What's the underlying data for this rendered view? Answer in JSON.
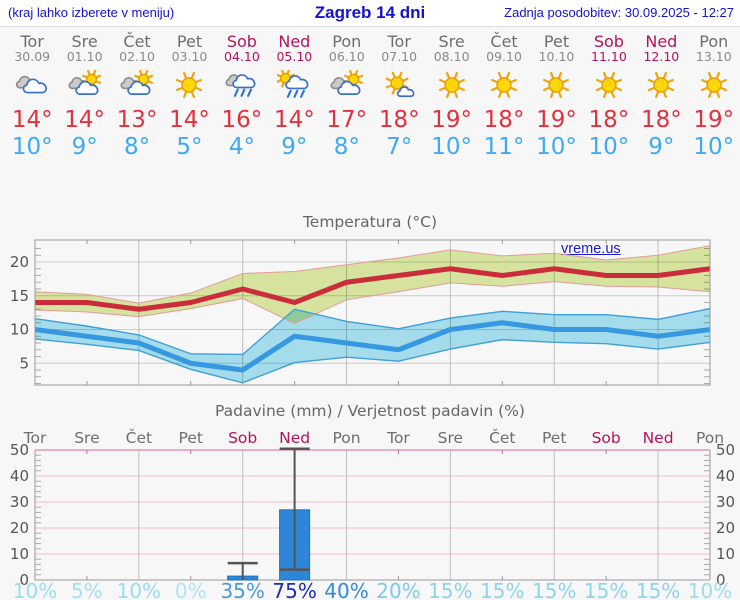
{
  "header": {
    "left_note": "(kraj lahko izberete v meniju)",
    "title": "Zagreb 14 dni",
    "last_update": "Zadnja posodobitev: 30.09.2025 - 12:27"
  },
  "watermark": "vreme.us",
  "colors": {
    "header_blue": "#1212d0",
    "weekend": "#b5135b",
    "weekday": "#6e6e6e",
    "date_weekday": "#8a8a8a",
    "temp_high": "#e0313f",
    "temp_low": "#3fa9f5",
    "axis_text": "#555555",
    "grid_v": "#bfbfbf",
    "grid_h": "#cccccc",
    "precip_grid": "#f3b9c8",
    "precip_top_border": "#e087a0",
    "plot_border": "#999999",
    "whisker": "#555555"
  },
  "days": [
    {
      "name": "Tor",
      "date": "30.09",
      "weekend": false,
      "icon": "cloudy",
      "high": "14°",
      "low": "10°"
    },
    {
      "name": "Sre",
      "date": "01.10",
      "weekend": false,
      "icon": "partly-cloudy",
      "high": "14°",
      "low": "9°"
    },
    {
      "name": "Čet",
      "date": "02.10",
      "weekend": false,
      "icon": "partly-cloudy",
      "high": "13°",
      "low": "8°"
    },
    {
      "name": "Pet",
      "date": "03.10",
      "weekend": false,
      "icon": "sunny",
      "high": "14°",
      "low": "5°"
    },
    {
      "name": "Sob",
      "date": "04.10",
      "weekend": true,
      "icon": "rain",
      "high": "16°",
      "low": "4°"
    },
    {
      "name": "Ned",
      "date": "05.10",
      "weekend": true,
      "icon": "sun-rain",
      "high": "14°",
      "low": "9°"
    },
    {
      "name": "Pon",
      "date": "06.10",
      "weekend": false,
      "icon": "partly-cloudy",
      "high": "17°",
      "low": "8°"
    },
    {
      "name": "Tor",
      "date": "07.10",
      "weekend": false,
      "icon": "mostly-sunny",
      "high": "18°",
      "low": "7°"
    },
    {
      "name": "Sre",
      "date": "08.10",
      "weekend": false,
      "icon": "sunny",
      "high": "19°",
      "low": "10°"
    },
    {
      "name": "Čet",
      "date": "09.10",
      "weekend": false,
      "icon": "sunny",
      "high": "18°",
      "low": "11°"
    },
    {
      "name": "Pet",
      "date": "10.10",
      "weekend": false,
      "icon": "sunny",
      "high": "19°",
      "low": "10°"
    },
    {
      "name": "Sob",
      "date": "11.10",
      "weekend": true,
      "icon": "sunny",
      "high": "18°",
      "low": "10°"
    },
    {
      "name": "Ned",
      "date": "12.10",
      "weekend": true,
      "icon": "sunny",
      "high": "18°",
      "low": "9°"
    },
    {
      "name": "Pon",
      "date": "13.10",
      "weekend": false,
      "icon": "sunny",
      "high": "19°",
      "low": "10°"
    }
  ],
  "chart_data": [
    {
      "type": "line",
      "title": "Temperatura (°C)",
      "x_labels": [
        "Tor",
        "Sre",
        "Čet",
        "Pet",
        "Sob",
        "Ned",
        "Pon",
        "Tor",
        "Sre",
        "Čet",
        "Pet",
        "Sob",
        "Ned",
        "Pon"
      ],
      "ylim": [
        1.8,
        23.2
      ],
      "yticks": [
        5,
        10,
        15,
        20
      ],
      "grid": true,
      "series": [
        {
          "name": "max_temp",
          "color": "#cb2c3c",
          "values": [
            14,
            14,
            13,
            14,
            16,
            14,
            17,
            18,
            19,
            18,
            19,
            18,
            18,
            19
          ]
        },
        {
          "name": "min_temp",
          "color": "#3598e0",
          "values": [
            10,
            9,
            8,
            5,
            4,
            9,
            8,
            7,
            10,
            11,
            10,
            10,
            9,
            10
          ]
        }
      ],
      "bands": [
        {
          "name": "max_range",
          "fill": "#dcebা4",
          "edge": "#e59a9a",
          "upper": [
            15.6,
            15.2,
            13.9,
            15.4,
            18.3,
            18.6,
            19.6,
            20.6,
            21.8,
            20.9,
            21.3,
            20.3,
            21.0,
            22.4
          ],
          "lower": [
            12.9,
            12.6,
            11.9,
            13.1,
            14.6,
            10.9,
            14.4,
            15.6,
            16.9,
            16.4,
            17.1,
            16.4,
            16.3,
            15.6
          ]
        },
        {
          "name": "min_range",
          "fill": "#a9e4f3",
          "edge": "#3f9fd9",
          "upper": [
            11.6,
            10.5,
            9.2,
            6.4,
            6.3,
            13.0,
            11.2,
            10.1,
            11.7,
            12.7,
            12.2,
            12.2,
            11.5,
            13.1
          ],
          "lower": [
            8.6,
            7.8,
            6.9,
            4.1,
            2.1,
            5.1,
            5.9,
            5.3,
            7.1,
            8.5,
            8.1,
            7.9,
            7.1,
            8.1
          ]
        }
      ]
    },
    {
      "type": "bar",
      "title": "Padavine (mm) / Verjetnost padavin (%)",
      "categories": [
        "Tor",
        "Sre",
        "Čet",
        "Pet",
        "Sob",
        "Ned",
        "Pon",
        "Tor",
        "Sre",
        "Čet",
        "Pet",
        "Sob",
        "Ned",
        "Pon"
      ],
      "ylim": [
        0,
        50
      ],
      "yticks": [
        0,
        10,
        20,
        30,
        40,
        50
      ],
      "bar_color": "#2e86d8",
      "values": [
        0,
        0,
        0,
        0,
        1.5,
        27,
        0,
        0,
        0,
        0,
        0,
        0,
        0,
        0
      ],
      "whiskers": [
        null,
        null,
        null,
        null,
        {
          "low": 0,
          "high": 6.5
        },
        {
          "low": 4,
          "high": 50.5
        },
        null,
        null,
        null,
        null,
        null,
        null,
        null,
        null
      ],
      "probabilities": [
        {
          "label": "10%",
          "color": "#9bdcf2"
        },
        {
          "label": "5%",
          "color": "#a4e0f4"
        },
        {
          "label": "10%",
          "color": "#9bdcf2"
        },
        {
          "label": "0%",
          "color": "#ade4f6"
        },
        {
          "label": "35%",
          "color": "#4a9ade"
        },
        {
          "label": "75%",
          "color": "#1b2eb5"
        },
        {
          "label": "40%",
          "color": "#3189d8"
        },
        {
          "label": "20%",
          "color": "#7cc9ec"
        },
        {
          "label": "15%",
          "color": "#8dd3f0"
        },
        {
          "label": "15%",
          "color": "#8dd3f0"
        },
        {
          "label": "15%",
          "color": "#8dd3f0"
        },
        {
          "label": "15%",
          "color": "#8dd3f0"
        },
        {
          "label": "15%",
          "color": "#8dd3f0"
        },
        {
          "label": "10%",
          "color": "#9bdcf2"
        }
      ]
    }
  ]
}
